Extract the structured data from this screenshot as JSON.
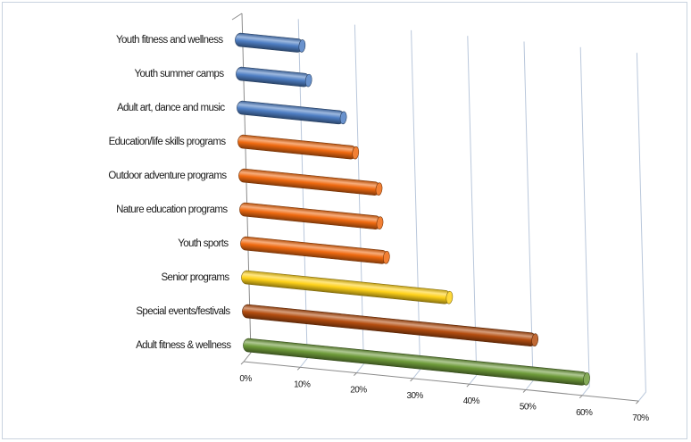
{
  "chart_data": {
    "type": "bar",
    "orientation": "horizontal",
    "style": "3d-cylinder",
    "title": "",
    "xlabel": "",
    "ylabel": "",
    "categories": [
      "Youth fitness and wellness",
      "Youth summer camps",
      "Adult art, dance and music",
      "Education/life skills programs",
      "Outdoor adventure programs",
      "Nature education programs",
      "Youth sports",
      "Senior programs",
      "Special events/festivals",
      "Adult fitness & wellness"
    ],
    "values": [
      12,
      13,
      19,
      21,
      25,
      25,
      26,
      37,
      52,
      61
    ],
    "bar_colors": [
      "#4f7fc4",
      "#4f7fc4",
      "#4f7fc4",
      "#f06a10",
      "#f06a10",
      "#f06a10",
      "#f06a10",
      "#ffd21a",
      "#b54e10",
      "#6e9b3a"
    ],
    "xlim": [
      0,
      70
    ],
    "x_ticks": [
      "0%",
      "10%",
      "20%",
      "30%",
      "40%",
      "50%",
      "60%",
      "70%"
    ],
    "grid": true,
    "legend": "none"
  }
}
